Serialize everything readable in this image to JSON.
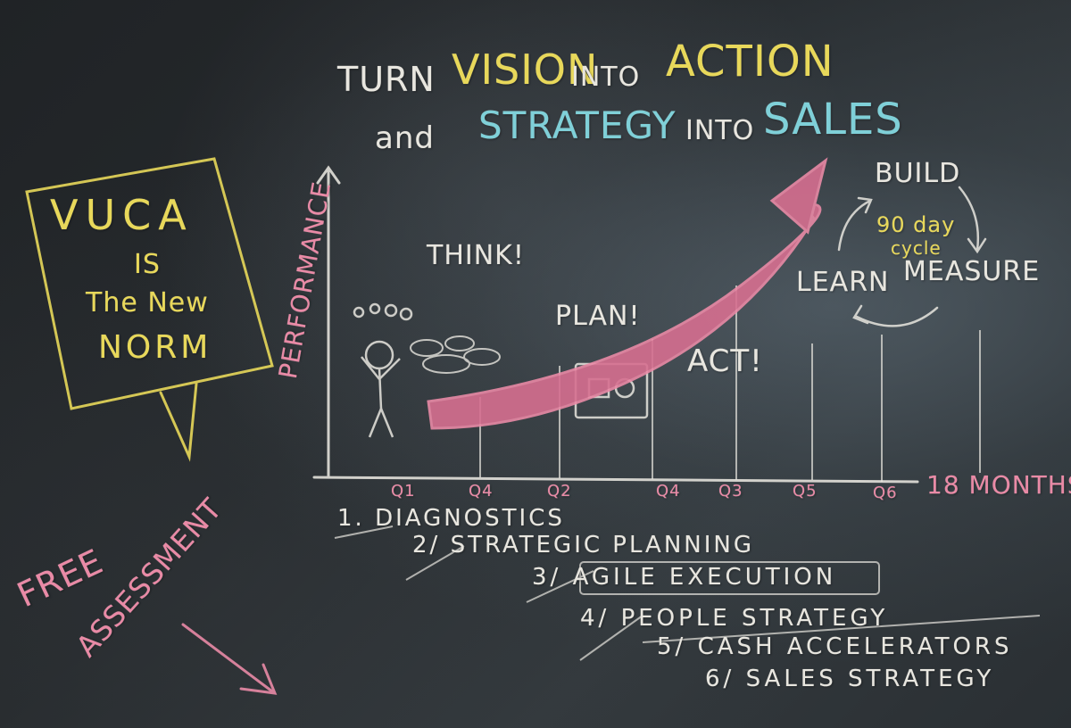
{
  "title": {
    "w1": "TURN",
    "w2": "VISION",
    "w3": "INTO",
    "w4": "ACTION",
    "w5": "and",
    "w6": "STRATEGY",
    "w7": "INTO",
    "w8": "SALES"
  },
  "vuca": {
    "line1": "VUCA",
    "line2": "IS",
    "line3": "The New",
    "line4": "NORM"
  },
  "y_axis_label": "PERFORMANCE",
  "stages": {
    "think": "THINK!",
    "plan": "PLAN!",
    "act": "ACT!"
  },
  "cycle": {
    "build": "BUILD",
    "center": "90 day",
    "center2": "cycle",
    "measure": "MEASURE",
    "learn": "LEARN"
  },
  "ticks": [
    "Q1",
    "Q4",
    "Q2",
    "Q4",
    "Q3",
    "Q5",
    "Q6"
  ],
  "duration": "18 MONTHS",
  "steps": [
    "1. DIAGNOSTICS",
    "2/ STRATEGIC PLANNING",
    "3/ AGILE EXECUTION",
    "4/ PEOPLE STRATEGY",
    "5/ CASH ACCELERATORS",
    "6/ SALES STRATEGY"
  ],
  "free": {
    "line1": "FREE",
    "line2": "ASSESSMENT"
  },
  "colors": {
    "chalk_white": "#e8e6df",
    "chalk_yellow": "#e8d85a",
    "chalk_blue": "#7fd0d8",
    "chalk_pink": "#e98aa6",
    "board": "#23272a"
  }
}
